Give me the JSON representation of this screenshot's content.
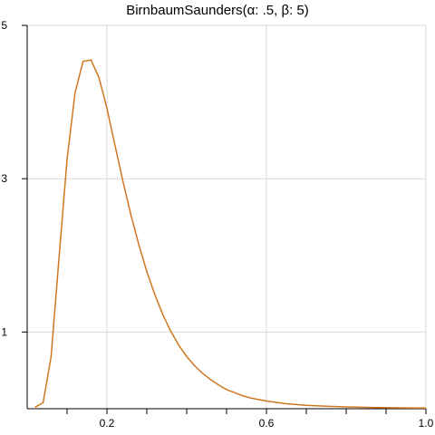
{
  "chart_data": {
    "type": "line",
    "title": "BirnbaumSaunders(α: .5, β: 5)",
    "xlabel": "",
    "ylabel": "",
    "xlim": [
      0.0,
      1.0
    ],
    "ylim": [
      0,
      5
    ],
    "x_ticks": [
      0.2,
      0.6,
      1.0
    ],
    "x_tick_labels": [
      "0.2",
      "0.6",
      "1.0"
    ],
    "x_minor_ticks": [
      0.1,
      0.2,
      0.3,
      0.4,
      0.5,
      0.6,
      0.7,
      0.8,
      0.9,
      1.0
    ],
    "y_ticks": [
      1,
      3,
      5
    ],
    "y_tick_labels": [
      "1",
      "3",
      "5"
    ],
    "grid": true,
    "legend": "none",
    "series": [
      {
        "color": "#d0761e",
        "x": [
          0.02,
          0.04,
          0.06,
          0.08,
          0.1,
          0.12,
          0.14,
          0.16,
          0.18,
          0.2,
          0.22,
          0.24,
          0.26,
          0.28,
          0.3,
          0.32,
          0.34,
          0.36,
          0.38,
          0.4,
          0.42,
          0.44,
          0.46,
          0.48,
          0.5,
          0.52,
          0.54,
          0.56,
          0.58,
          0.6,
          0.65,
          0.7,
          0.75,
          0.8,
          0.85,
          0.9,
          0.95,
          1.0
        ],
        "y": [
          0.02,
          0.08,
          0.68,
          1.98,
          3.25,
          4.12,
          4.53,
          4.55,
          4.32,
          3.92,
          3.44,
          2.97,
          2.53,
          2.14,
          1.79,
          1.49,
          1.23,
          1.01,
          0.83,
          0.68,
          0.56,
          0.46,
          0.38,
          0.31,
          0.25,
          0.21,
          0.17,
          0.14,
          0.12,
          0.1,
          0.065,
          0.045,
          0.032,
          0.024,
          0.018,
          0.014,
          0.011,
          0.009
        ]
      }
    ]
  }
}
